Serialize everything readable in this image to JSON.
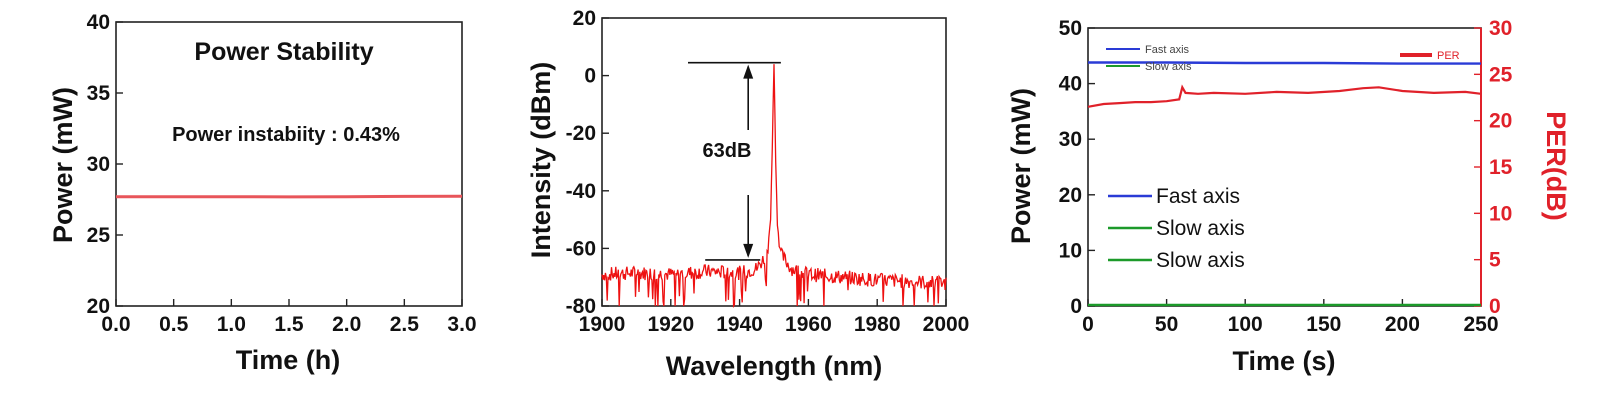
{
  "chart_data": [
    {
      "type": "line",
      "title": "Power Stability",
      "annotation": "Power instabiity : 0.43%",
      "xlabel": "Time (h)",
      "ylabel": "Power (mW)",
      "xlim": [
        0.0,
        3.0
      ],
      "ylim": [
        20,
        40
      ],
      "xticks": [
        "0.0",
        "0.5",
        "1.0",
        "1.5",
        "2.0",
        "2.5",
        "3.0"
      ],
      "yticks": [
        "20",
        "25",
        "30",
        "35",
        "40"
      ],
      "series": [
        {
          "color": "#e8555a",
          "x": [
            0.0,
            0.5,
            1.0,
            1.5,
            2.0,
            2.5,
            3.0
          ],
          "y": [
            27.7,
            27.7,
            27.7,
            27.68,
            27.7,
            27.72,
            27.73
          ]
        }
      ]
    },
    {
      "type": "line",
      "xlabel": "Wavelength (nm)",
      "ylabel": "Intensity (dBm)",
      "annotation": "63dB",
      "xlim": [
        1900,
        2000
      ],
      "ylim": [
        -80,
        20
      ],
      "xticks": [
        "1900",
        "1920",
        "1940",
        "1960",
        "1980",
        "2000"
      ],
      "yticks": [
        "-80",
        "-60",
        "-40",
        "-20",
        "0",
        "20"
      ],
      "peak": {
        "x": 1950,
        "y": 4
      },
      "noise_floor": -68,
      "marker_levels": [
        4.5,
        -64
      ],
      "series": [
        {
          "color": "#ee1111",
          "x": [
            1900,
            1910,
            1920,
            1930,
            1940,
            1945,
            1948,
            1949,
            1949.5,
            1950,
            1950.5,
            1951,
            1952,
            1955,
            1960,
            1970,
            1980,
            1990,
            2000
          ],
          "y": [
            -69,
            -68.5,
            -69,
            -68,
            -68.5,
            -67,
            -62,
            -50,
            -25,
            4,
            -30,
            -52,
            -62,
            -67,
            -69,
            -70,
            -71,
            -71.5,
            -72
          ]
        }
      ]
    },
    {
      "type": "line",
      "xlabel": "Time (s)",
      "ylabel": "Power (mW)",
      "ylabel_right": "PER(dB)",
      "xlim": [
        0,
        250
      ],
      "ylim": [
        0,
        50
      ],
      "ylim_right": [
        0,
        30
      ],
      "xticks": [
        "0",
        "50",
        "100",
        "150",
        "200",
        "250"
      ],
      "yticks": [
        "0",
        "10",
        "20",
        "30",
        "40",
        "50"
      ],
      "yticks_right": [
        "0",
        "5",
        "10",
        "15",
        "20",
        "25",
        "30"
      ],
      "legend": [
        {
          "label": "Fast axis",
          "color": "#2a3bd6"
        },
        {
          "label": "Slow axis",
          "color": "#1c9a2a"
        },
        {
          "label": "Slow axis",
          "color": "#1c9a2a"
        }
      ],
      "inset_legend": [
        {
          "label": "Fast axis",
          "color": "#2a3bd6"
        },
        {
          "label": "Slow axis",
          "color": "#1c9a2a"
        }
      ],
      "inset_legend_right": {
        "label": "PER",
        "color": "#e0212a"
      },
      "series": [
        {
          "color": "#2a3bd6",
          "axis": "left",
          "x": [
            0,
            50,
            100,
            150,
            200,
            250
          ],
          "y": [
            43.8,
            43.8,
            43.7,
            43.7,
            43.6,
            43.6
          ]
        },
        {
          "color": "#1c9a2a",
          "axis": "left",
          "x": [
            0,
            50,
            100,
            150,
            200,
            250
          ],
          "y": [
            0.2,
            0.2,
            0.2,
            0.2,
            0.2,
            0.2
          ]
        },
        {
          "color": "#e0212a",
          "axis": "right",
          "x": [
            0,
            10,
            20,
            30,
            40,
            50,
            58,
            60,
            62,
            70,
            80,
            100,
            120,
            140,
            160,
            175,
            185,
            200,
            220,
            240,
            250
          ],
          "y": [
            21.5,
            21.8,
            21.9,
            22.0,
            22.0,
            22.1,
            22.3,
            23.6,
            23.0,
            22.9,
            23.0,
            22.9,
            23.1,
            23.0,
            23.2,
            23.5,
            23.6,
            23.2,
            23.0,
            23.1,
            22.9
          ]
        }
      ]
    }
  ]
}
